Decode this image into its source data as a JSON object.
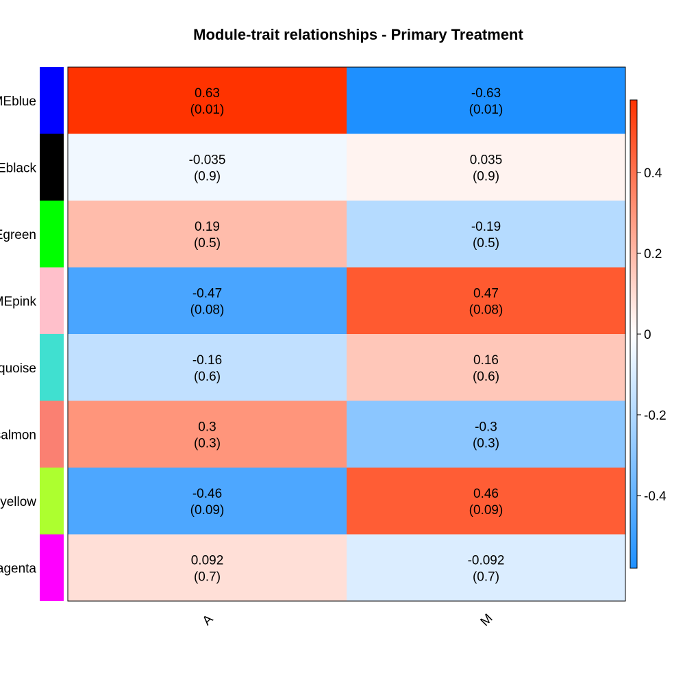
{
  "chart_data": {
    "type": "heatmap",
    "title": "Module-trait relationships - Primary Treatment",
    "columns": [
      "A",
      "M"
    ],
    "rows": [
      {
        "label": "MEblue",
        "module_color": "#0000FF",
        "values": [
          0.63,
          -0.63
        ],
        "value_text": [
          "0.63",
          "-0.63"
        ],
        "pvalue_text": [
          "(0.01)",
          "(0.01)"
        ]
      },
      {
        "label": "MEblack",
        "module_color": "#000000",
        "values": [
          -0.035,
          0.035
        ],
        "value_text": [
          "-0.035",
          "0.035"
        ],
        "pvalue_text": [
          "(0.9)",
          "(0.9)"
        ]
      },
      {
        "label": "MEgreen",
        "module_color": "#00FF00",
        "values": [
          0.19,
          -0.19
        ],
        "value_text": [
          "0.19",
          "-0.19"
        ],
        "pvalue_text": [
          "(0.5)",
          "(0.5)"
        ]
      },
      {
        "label": "MEpink",
        "module_color": "#FFC0CB",
        "values": [
          -0.47,
          0.47
        ],
        "value_text": [
          "-0.47",
          "0.47"
        ],
        "pvalue_text": [
          "(0.08)",
          "(0.08)"
        ]
      },
      {
        "label": "MEturquoise",
        "module_color": "#40E0D0",
        "values": [
          -0.16,
          0.16
        ],
        "value_text": [
          "-0.16",
          "0.16"
        ],
        "pvalue_text": [
          "(0.6)",
          "(0.6)"
        ]
      },
      {
        "label": "MEsalmon",
        "module_color": "#FA8072",
        "values": [
          0.3,
          -0.3
        ],
        "value_text": [
          "0.3",
          "-0.3"
        ],
        "pvalue_text": [
          "(0.3)",
          "(0.3)"
        ]
      },
      {
        "label": "MEyellow",
        "module_color": "#ADFF2F",
        "values": [
          -0.46,
          0.46
        ],
        "value_text": [
          "-0.46",
          "0.46"
        ],
        "pvalue_text": [
          "(0.09)",
          "(0.09)"
        ]
      },
      {
        "label": "MEmagenta",
        "module_color": "#FF00FF",
        "values": [
          0.092,
          -0.092
        ],
        "value_text": [
          "0.092",
          "-0.092"
        ],
        "pvalue_text": [
          "(0.7)",
          "(0.7)"
        ]
      }
    ],
    "colorbar": {
      "range": [
        -0.58,
        0.58
      ],
      "ticks": [
        0.4,
        0.2,
        0,
        -0.2,
        -0.4
      ],
      "tick_labels": [
        "0.4",
        "0.2",
        "0",
        "-0.2",
        "-0.4"
      ],
      "low_color": "#1E90FF",
      "mid_color": "#FFFFFF",
      "high_color": "#FF3300"
    },
    "legend": "right"
  }
}
